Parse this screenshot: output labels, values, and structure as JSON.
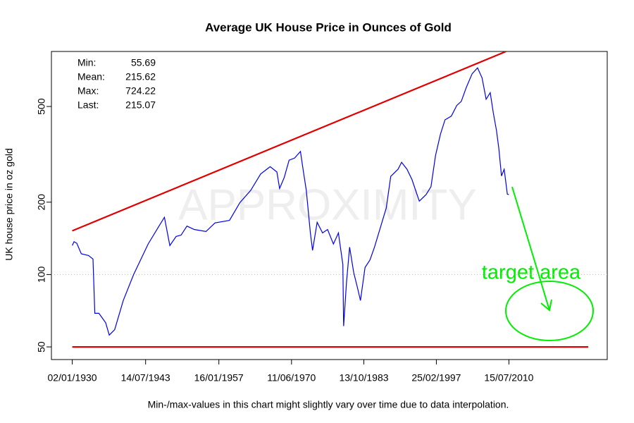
{
  "chart_data": {
    "type": "line",
    "title": "Average UK House Price in Ounces of Gold",
    "y_label": "UK house price in oz gold",
    "footnote": "Min-/max-values in this chart might slightly vary over time due to data interpolation.",
    "watermark": "APPROXIMITY",
    "annotation": "target area",
    "stats": [
      {
        "label": "Min:",
        "value": 55.69
      },
      {
        "label": "Mean:",
        "value": 215.62
      },
      {
        "label": "Max:",
        "value": 724.22
      },
      {
        "label": "Last:",
        "value": 215.07
      }
    ],
    "log_y": true,
    "reference_line": 100,
    "xlim": [
      "1926-03-01",
      "2028-09-01"
    ],
    "ylim": [
      44.3,
      847
    ],
    "xticks": [
      {
        "value": "1930-01-02",
        "label": "02/01/1930"
      },
      {
        "value": "1943-07-14",
        "label": "14/07/1943"
      },
      {
        "value": "1957-01-16",
        "label": "16/01/1957"
      },
      {
        "value": "1970-06-11",
        "label": "11/06/1970"
      },
      {
        "value": "1983-10-13",
        "label": "13/10/1983"
      },
      {
        "value": "1997-02-25",
        "label": "25/02/1997"
      },
      {
        "value": "2010-07-15",
        "label": "15/07/2010"
      }
    ],
    "yticks": [
      50,
      100,
      200,
      500
    ],
    "trend_lines": [
      {
        "color": "#e00000",
        "x": [
          "1930-01-02",
          "2010-01-01"
        ],
        "values": [
          152,
          847
        ]
      },
      {
        "color": "#e00000",
        "x": [
          "1930-01-02",
          "2025-03-01"
        ],
        "values": [
          50,
          50
        ]
      }
    ],
    "series": [
      {
        "color": "#0000ee",
        "x": [
          "1930-01-02",
          "1930-05-01",
          "1930-11-01",
          "1931-09-01",
          "1933-01-01",
          "1933-11-01",
          "1934-03-01",
          "1934-12-01",
          "1936-03-01",
          "1936-11-01",
          "1937-11-01",
          "1939-06-01",
          "1941-05-01",
          "1944-01-01",
          "1946-01-01",
          "1947-01-01",
          "1948-01-01",
          "1949-03-01",
          "1950-02-01",
          "1951-03-01",
          "1952-07-01",
          "1954-09-01",
          "1956-05-01",
          "1959-01-01",
          "1960-12-01",
          "1962-12-01",
          "1964-10-01",
          "1966-07-01",
          "1967-10-01",
          "1968-04-01",
          "1969-02-01",
          "1970-01-01",
          "1971-01-01",
          "1972-02-01",
          "1972-08-01",
          "1973-03-01",
          "1973-12-01",
          "1974-05-01",
          "1975-03-01",
          "1976-03-01",
          "1977-02-01",
          "1978-03-01",
          "1979-02-01",
          "1979-12-01",
          "1980-01-21",
          "1980-08-01",
          "1981-03-01",
          "1981-12-01",
          "1982-09-01",
          "1983-03-01",
          "1984-01-01",
          "1984-12-01",
          "1985-10-01",
          "1986-12-01",
          "1987-12-01",
          "1988-10-01",
          "1990-02-01",
          "1990-10-01",
          "1991-10-01",
          "1992-09-01",
          "1993-05-01",
          "1994-01-01",
          "1995-04-01",
          "1996-03-01",
          "1997-01-01",
          "1997-12-01",
          "1998-10-01",
          "1999-12-01",
          "2000-12-01",
          "2001-10-01",
          "2002-09-01",
          "2003-10-01",
          "2004-10-01",
          "2005-08-01",
          "2006-05-01",
          "2007-02-01",
          "2007-09-01",
          "2008-04-01",
          "2008-09-01",
          "2009-03-01",
          "2009-09-01",
          "2010-04-01",
          "2010-07-15"
        ],
        "values": [
          132,
          137,
          135,
          122,
          120,
          116,
          69,
          69,
          63,
          56,
          59,
          78,
          100,
          134,
          159,
          173,
          132,
          144,
          146,
          159,
          154,
          151,
          164,
          168,
          199,
          224,
          262,
          281,
          267,
          228,
          253,
          299,
          305,
          325,
          273,
          224,
          149,
          126,
          165,
          149,
          154,
          134,
          149,
          110,
          61,
          93,
          130,
          102,
          87,
          78,
          107,
          115,
          130,
          159,
          189,
          256,
          274,
          293,
          274,
          248,
          224,
          202,
          215,
          232,
          313,
          384,
          440,
          456,
          505,
          525,
          600,
          684,
          724,
          658,
          536,
          571,
          470,
          397,
          335,
          257,
          274,
          216,
          215
        ]
      }
    ]
  }
}
